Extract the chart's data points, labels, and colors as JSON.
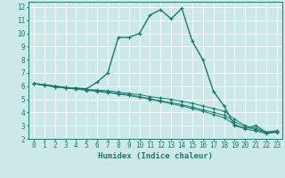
{
  "xlabel": "Humidex (Indice chaleur)",
  "ylabel": "",
  "bg_color": "#cce8e8",
  "grid_color": "#ffffff",
  "line_color": "#1a7a6e",
  "xlim": [
    -0.5,
    23.5
  ],
  "ylim": [
    2,
    12.4
  ],
  "xticks": [
    0,
    1,
    2,
    3,
    4,
    5,
    6,
    7,
    8,
    9,
    10,
    11,
    12,
    13,
    14,
    15,
    16,
    17,
    18,
    19,
    20,
    21,
    22,
    23
  ],
  "yticks": [
    2,
    3,
    4,
    5,
    6,
    7,
    8,
    9,
    10,
    11,
    12
  ],
  "lines": [
    {
      "x": [
        0,
        1,
        2,
        3,
        4,
        5,
        6,
        7,
        8,
        9,
        10,
        11,
        12,
        13,
        14,
        15,
        16,
        17,
        18,
        19,
        20,
        21,
        22,
        23
      ],
      "y": [
        6.2,
        6.1,
        6.0,
        5.9,
        5.85,
        5.8,
        6.3,
        7.0,
        9.7,
        9.7,
        10.0,
        11.4,
        11.8,
        11.1,
        11.9,
        9.4,
        8.0,
        5.6,
        4.5,
        3.0,
        2.8,
        3.0,
        2.5,
        2.6
      ]
    },
    {
      "x": [
        0,
        1,
        2,
        3,
        4,
        5,
        6,
        7,
        8,
        9,
        10,
        11,
        12,
        13,
        14,
        15,
        16,
        17,
        18,
        19,
        20,
        21,
        22,
        23
      ],
      "y": [
        6.2,
        6.1,
        6.0,
        5.9,
        5.85,
        5.75,
        5.7,
        5.65,
        5.55,
        5.45,
        5.35,
        5.2,
        5.1,
        5.0,
        4.85,
        4.7,
        4.5,
        4.3,
        4.1,
        3.5,
        3.0,
        2.8,
        2.5,
        2.6
      ]
    },
    {
      "x": [
        0,
        1,
        2,
        3,
        4,
        5,
        6,
        7,
        8,
        9,
        10,
        11,
        12,
        13,
        14,
        15,
        16,
        17,
        18,
        19,
        20,
        21,
        22,
        23
      ],
      "y": [
        6.2,
        6.05,
        5.95,
        5.85,
        5.8,
        5.72,
        5.65,
        5.55,
        5.45,
        5.35,
        5.2,
        5.05,
        4.9,
        4.75,
        4.6,
        4.4,
        4.2,
        4.0,
        3.8,
        3.3,
        2.9,
        2.7,
        2.45,
        2.55
      ]
    },
    {
      "x": [
        0,
        1,
        2,
        3,
        4,
        5,
        6,
        7,
        8,
        9,
        10,
        11,
        12,
        13,
        14,
        15,
        16,
        17,
        18,
        19,
        20,
        21,
        22,
        23
      ],
      "y": [
        6.2,
        6.05,
        5.95,
        5.85,
        5.78,
        5.68,
        5.6,
        5.5,
        5.4,
        5.28,
        5.15,
        5.0,
        4.83,
        4.67,
        4.5,
        4.3,
        4.1,
        3.85,
        3.6,
        3.1,
        2.75,
        2.6,
        2.4,
        2.5
      ]
    }
  ]
}
